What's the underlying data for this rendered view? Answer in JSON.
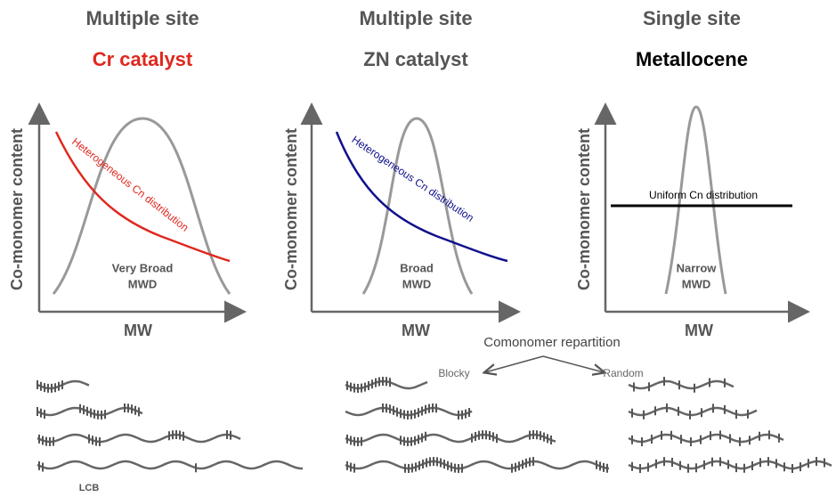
{
  "panels": [
    {
      "header": "Multiple site",
      "subtitle": "Cr catalyst",
      "y_label": "Co-monomer content",
      "x_label": "MW",
      "curve_label": "Heterogeneous Cn distribution",
      "mwd_label": [
        "Very Broad",
        "MWD"
      ]
    },
    {
      "header": "Multiple site",
      "subtitle": "ZN catalyst",
      "y_label": "Co-monomer content",
      "x_label": "MW",
      "curve_label": "Heterogeneous Cn distribution",
      "mwd_label": [
        "Broad",
        "MWD"
      ]
    },
    {
      "header": "Single site",
      "subtitle": "Metallocene",
      "y_label": "Co-monomer content",
      "x_label": "MW",
      "curve_label": "Uniform Cn distribution",
      "mwd_label": [
        "Narrow",
        "MWD"
      ]
    }
  ],
  "repartition": {
    "title": "Comonomer repartition",
    "left": "Blocky",
    "right": "Random"
  },
  "lcb_label": "LCB"
}
